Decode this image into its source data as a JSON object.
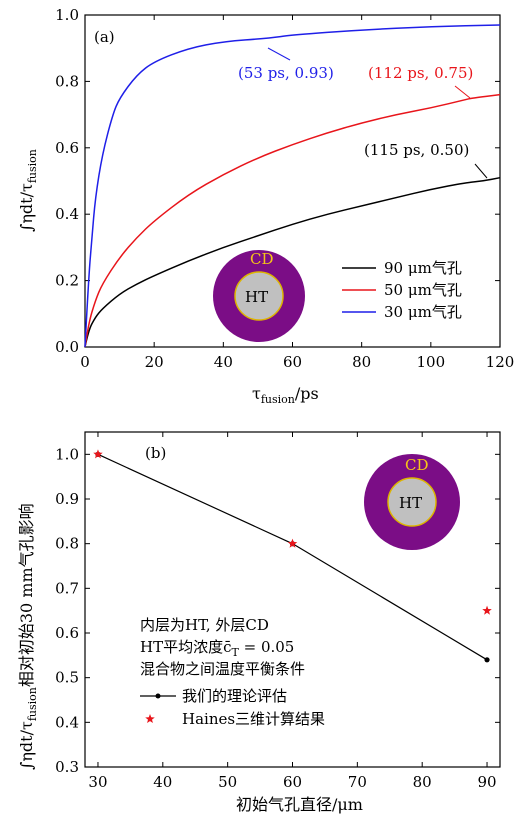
{
  "chart_data": [
    {
      "panel": "(a)",
      "type": "line",
      "xlabel_main": "τ",
      "xlabel_sub": "fusion",
      "xlabel_unit": "/ps",
      "ylabel_main": "∫ηdt/τ",
      "ylabel_sub": "fusion",
      "xlim": [
        0,
        120
      ],
      "ylim": [
        0,
        1.0
      ],
      "xticks": [
        0,
        20,
        40,
        60,
        80,
        100,
        120
      ],
      "yticks": [
        0,
        0.2,
        0.4,
        0.6,
        0.8,
        1.0
      ],
      "grid": false,
      "legend_position": "bottom-right",
      "series": [
        {
          "name": "90 μm气孔",
          "color": "#000000",
          "x": [
            0,
            1,
            3,
            5,
            10,
            15,
            20,
            30,
            40,
            50,
            60,
            70,
            80,
            90,
            100,
            110,
            115,
            120
          ],
          "y": [
            0,
            0.05,
            0.09,
            0.115,
            0.16,
            0.19,
            0.215,
            0.26,
            0.3,
            0.335,
            0.37,
            0.4,
            0.425,
            0.45,
            0.475,
            0.495,
            0.5,
            0.51
          ]
        },
        {
          "name": "50 μm气孔",
          "color": "#e8151b",
          "x": [
            0,
            1,
            3,
            5,
            10,
            15,
            20,
            30,
            40,
            50,
            60,
            70,
            80,
            90,
            100,
            110,
            112,
            120
          ],
          "y": [
            0,
            0.07,
            0.14,
            0.19,
            0.27,
            0.33,
            0.38,
            0.46,
            0.52,
            0.57,
            0.61,
            0.645,
            0.675,
            0.7,
            0.72,
            0.745,
            0.75,
            0.76
          ]
        },
        {
          "name": "30 μm气孔",
          "color": "#1f1fe8",
          "x": [
            0,
            1,
            2,
            3,
            5,
            8,
            10,
            15,
            20,
            30,
            40,
            53,
            60,
            80,
            100,
            120
          ],
          "y": [
            0,
            0.2,
            0.33,
            0.45,
            0.58,
            0.7,
            0.75,
            0.82,
            0.86,
            0.9,
            0.92,
            0.93,
            0.94,
            0.955,
            0.965,
            0.97
          ]
        }
      ],
      "annotations": [
        {
          "text": "(53 ps, 0.93)",
          "color": "#1f1fe8",
          "x": 53,
          "y": 0.93
        },
        {
          "text": "(112 ps, 0.75)",
          "color": "#e8151b",
          "x": 112,
          "y": 0.75
        },
        {
          "text": "(115 ps, 0.50)",
          "color": "#000000",
          "x": 115,
          "y": 0.5
        }
      ],
      "inset": {
        "outer_label": "CD",
        "inner_label": "HT",
        "outer_color": "#7b0d86",
        "inner_color": "#c0c0c0",
        "outer_label_color": "#f5c518"
      }
    },
    {
      "panel": "(b)",
      "type": "line",
      "xlabel": "初始气孔直径/μm",
      "ylabel_main": "∫ηdt/τ",
      "ylabel_sub": "fusion",
      "ylabel_tail": "相对初始30 mm气孔影响",
      "xlim": [
        28,
        92
      ],
      "ylim": [
        0.3,
        1.05
      ],
      "xticks": [
        30,
        40,
        50,
        60,
        70,
        80,
        90
      ],
      "yticks": [
        0.3,
        0.4,
        0.5,
        0.6,
        0.7,
        0.8,
        0.9,
        1.0
      ],
      "grid": false,
      "legend_position": "bottom-left",
      "text_lines": [
        "内层为HT, 外层CD",
        "HT平均浓度c̄",
        "混合物之间温度平衡条件"
      ],
      "text_sub": "T",
      "text_tail": " = 0.05",
      "series": [
        {
          "name": "我们的理论评估",
          "color": "#000000",
          "marker": "dot",
          "x": [
            30,
            60,
            90
          ],
          "y": [
            1.0,
            0.8,
            0.54
          ]
        },
        {
          "name": "Haines三维计算结果",
          "color": "#e8151b",
          "marker": "star",
          "x": [
            30,
            60,
            90
          ],
          "y": [
            1.0,
            0.8,
            0.65
          ]
        }
      ],
      "inset": {
        "outer_label": "CD",
        "inner_label": "HT",
        "outer_color": "#7b0d86",
        "inner_color": "#c0c0c0",
        "outer_label_color": "#f5c518"
      }
    }
  ]
}
